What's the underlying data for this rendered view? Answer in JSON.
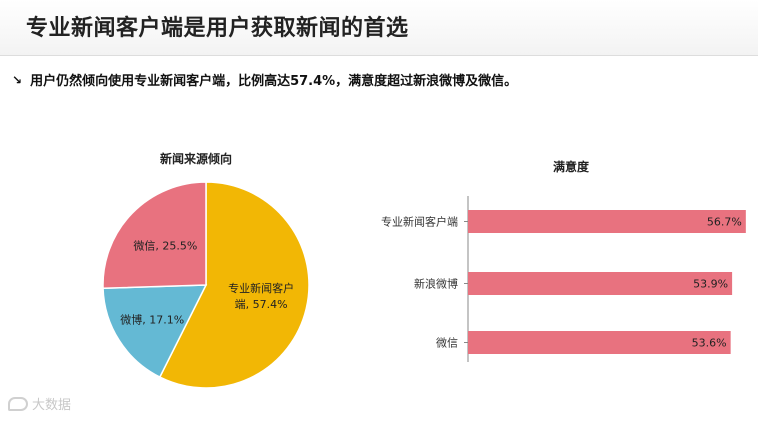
{
  "header": {
    "title": "专业新闻客户端是用户获取新闻的首选"
  },
  "subtitle": {
    "arrow_icon": "arrow-down-right-icon",
    "text": "用户仍然倾向使用专业新闻客户端，比例高达57.4%，满意度超过新浪微博及微信。"
  },
  "chart_data": [
    {
      "type": "pie",
      "title": "新闻来源倾向",
      "slices": [
        {
          "label": "专业新闻客户端",
          "value": 57.4,
          "display": "专业新闻客户端, 57.4%",
          "color": "#f2b705"
        },
        {
          "label": "微博",
          "value": 17.1,
          "display": "微博, 17.1%",
          "color": "#64b9d4"
        },
        {
          "label": "微信",
          "value": 25.5,
          "display": "微信, 25.5%",
          "color": "#e8727f"
        }
      ]
    },
    {
      "type": "bar",
      "orientation": "horizontal",
      "title": "满意度",
      "categories": [
        "专业新闻客户端",
        "新浪微博",
        "微信"
      ],
      "values": [
        56.7,
        53.9,
        53.6
      ],
      "labels": [
        "56.7%",
        "53.9%",
        "53.6%"
      ],
      "color": "#e8727f"
    }
  ],
  "watermark": {
    "text": "大数据"
  }
}
